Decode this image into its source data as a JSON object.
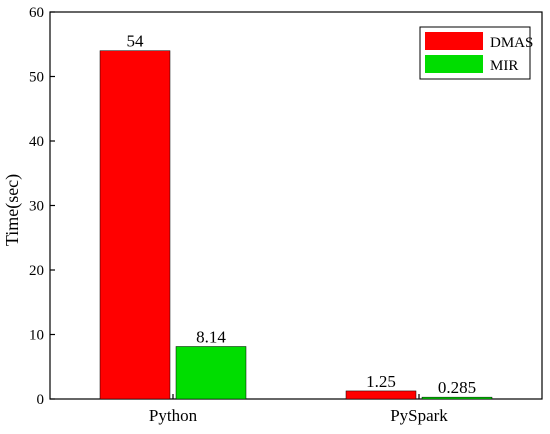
{
  "chart_data": {
    "type": "bar",
    "title": "",
    "xlabel": "",
    "ylabel": "Time(sec)",
    "ylim": [
      0,
      60
    ],
    "yticks": [
      0,
      10,
      20,
      30,
      40,
      50,
      60
    ],
    "categories": [
      "Python",
      "PySpark"
    ],
    "series": [
      {
        "name": "DMAS",
        "values": [
          54,
          1.25
        ],
        "labels": [
          "54",
          "1.25"
        ],
        "color": "#ff0000"
      },
      {
        "name": "MIR",
        "values": [
          8.14,
          0.285
        ],
        "labels": [
          "8.14",
          "0.285"
        ],
        "color": "#00dd00"
      }
    ],
    "legend_position": "top-right",
    "grid": false
  }
}
